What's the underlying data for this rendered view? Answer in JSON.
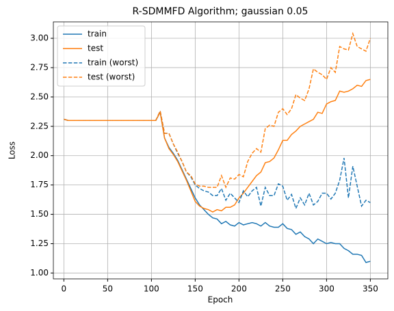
{
  "chart_data": {
    "type": "line",
    "title": "R-SDMMFD Algorithm; gaussian 0.05",
    "xlabel": "Epoch",
    "ylabel": "Loss",
    "x": [
      0,
      5,
      10,
      15,
      20,
      25,
      30,
      35,
      40,
      45,
      50,
      55,
      60,
      65,
      70,
      75,
      80,
      85,
      90,
      95,
      100,
      105,
      110,
      115,
      120,
      125,
      130,
      135,
      140,
      145,
      150,
      155,
      160,
      165,
      170,
      175,
      180,
      185,
      190,
      195,
      200,
      205,
      210,
      215,
      220,
      225,
      230,
      235,
      240,
      245,
      250,
      255,
      260,
      265,
      270,
      275,
      280,
      285,
      290,
      295,
      300,
      305,
      310,
      315,
      320,
      325,
      330,
      335,
      340,
      345,
      350
    ],
    "series": [
      {
        "name": "train",
        "color": "#1f77b4",
        "dashed": false,
        "values": [
          2.31,
          2.3,
          2.3,
          2.3,
          2.3,
          2.3,
          2.3,
          2.3,
          2.3,
          2.3,
          2.3,
          2.3,
          2.3,
          2.3,
          2.3,
          2.3,
          2.3,
          2.3,
          2.3,
          2.3,
          2.3,
          2.3,
          2.37,
          2.15,
          2.07,
          2.02,
          1.96,
          1.88,
          1.8,
          1.72,
          1.64,
          1.58,
          1.54,
          1.5,
          1.47,
          1.46,
          1.42,
          1.44,
          1.41,
          1.4,
          1.43,
          1.41,
          1.42,
          1.43,
          1.42,
          1.4,
          1.43,
          1.4,
          1.39,
          1.39,
          1.42,
          1.38,
          1.37,
          1.33,
          1.35,
          1.31,
          1.29,
          1.25,
          1.29,
          1.27,
          1.25,
          1.26,
          1.25,
          1.25,
          1.21,
          1.19,
          1.16,
          1.16,
          1.15,
          1.09,
          1.1
        ]
      },
      {
        "name": "test",
        "color": "#ff7f0e",
        "dashed": false,
        "values": [
          2.31,
          2.3,
          2.3,
          2.3,
          2.3,
          2.3,
          2.3,
          2.3,
          2.3,
          2.3,
          2.3,
          2.3,
          2.3,
          2.3,
          2.3,
          2.3,
          2.3,
          2.3,
          2.3,
          2.3,
          2.3,
          2.3,
          2.37,
          2.15,
          2.06,
          2.01,
          1.95,
          1.87,
          1.79,
          1.7,
          1.61,
          1.57,
          1.55,
          1.54,
          1.52,
          1.54,
          1.53,
          1.56,
          1.56,
          1.58,
          1.64,
          1.68,
          1.73,
          1.78,
          1.83,
          1.86,
          1.94,
          1.95,
          1.98,
          2.05,
          2.13,
          2.13,
          2.18,
          2.21,
          2.25,
          2.27,
          2.29,
          2.31,
          2.37,
          2.36,
          2.44,
          2.46,
          2.47,
          2.55,
          2.54,
          2.55,
          2.57,
          2.6,
          2.59,
          2.64,
          2.65
        ]
      },
      {
        "name": "train (worst)",
        "color": "#1f77b4",
        "dashed": true,
        "values": [
          2.31,
          2.3,
          2.3,
          2.3,
          2.3,
          2.3,
          2.3,
          2.3,
          2.3,
          2.3,
          2.3,
          2.3,
          2.3,
          2.3,
          2.3,
          2.3,
          2.3,
          2.3,
          2.3,
          2.3,
          2.3,
          2.3,
          2.38,
          2.19,
          2.19,
          2.1,
          2.02,
          1.95,
          1.86,
          1.82,
          1.75,
          1.72,
          1.7,
          1.69,
          1.66,
          1.66,
          1.72,
          1.62,
          1.68,
          1.64,
          1.6,
          1.7,
          1.65,
          1.7,
          1.73,
          1.57,
          1.73,
          1.66,
          1.66,
          1.76,
          1.74,
          1.62,
          1.67,
          1.55,
          1.64,
          1.58,
          1.68,
          1.58,
          1.61,
          1.68,
          1.68,
          1.63,
          1.68,
          1.79,
          1.98,
          1.64,
          1.91,
          1.74,
          1.57,
          1.62,
          1.6
        ]
      },
      {
        "name": "test (worst)",
        "color": "#ff7f0e",
        "dashed": true,
        "values": [
          2.31,
          2.3,
          2.3,
          2.3,
          2.3,
          2.3,
          2.3,
          2.3,
          2.3,
          2.3,
          2.3,
          2.3,
          2.3,
          2.3,
          2.3,
          2.3,
          2.3,
          2.3,
          2.3,
          2.3,
          2.3,
          2.3,
          2.38,
          2.19,
          2.19,
          2.1,
          2.03,
          1.95,
          1.86,
          1.83,
          1.76,
          1.74,
          1.74,
          1.73,
          1.73,
          1.73,
          1.83,
          1.73,
          1.81,
          1.8,
          1.84,
          1.82,
          1.95,
          2.02,
          2.06,
          2.03,
          2.23,
          2.26,
          2.25,
          2.37,
          2.4,
          2.35,
          2.4,
          2.52,
          2.49,
          2.47,
          2.57,
          2.74,
          2.71,
          2.69,
          2.65,
          2.75,
          2.71,
          2.93,
          2.91,
          2.9,
          3.04,
          2.93,
          2.91,
          2.89,
          3.0
        ]
      }
    ],
    "xlim": [
      -12,
      370
    ],
    "ylim": [
      0.95,
      3.14
    ],
    "xticks": [
      0,
      50,
      100,
      150,
      200,
      250,
      300,
      350
    ],
    "yticks": [
      {
        "value": 1,
        "label": "1.00"
      },
      {
        "value": 1.25,
        "label": "1.25"
      },
      {
        "value": 1.5,
        "label": "1.50"
      },
      {
        "value": 1.75,
        "label": "1.75"
      },
      {
        "value": 2,
        "label": "2.00"
      },
      {
        "value": 2.25,
        "label": "2.25"
      },
      {
        "value": 2.5,
        "label": "2.50"
      },
      {
        "value": 2.75,
        "label": "2.75"
      },
      {
        "value": 3,
        "label": "3.00"
      }
    ],
    "grid": true,
    "legend": "upper left"
  }
}
